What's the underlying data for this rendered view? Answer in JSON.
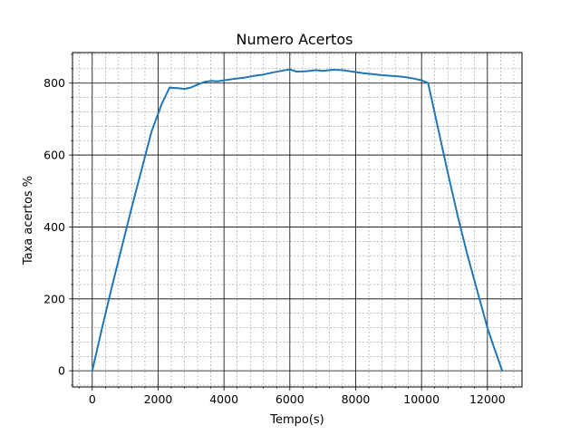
{
  "chart_data": {
    "type": "line",
    "title": "Numero Acertos",
    "xlabel": "Tempo(s)",
    "ylabel": "Taxa acertos %",
    "xlim": [
      -600,
      13050
    ],
    "ylim": [
      -45,
      885
    ],
    "xticks": [
      0,
      2000,
      4000,
      6000,
      8000,
      10000,
      12000
    ],
    "yticks": [
      0,
      200,
      400,
      600,
      800
    ],
    "grid": "major solid black, minor dashed gray",
    "line_color": "#1f77b4",
    "series": [
      {
        "x": [
          0,
          300,
          600,
          900,
          1200,
          1500,
          1800,
          2100,
          2350,
          2400,
          2600,
          2800,
          3000,
          3200,
          3400,
          3600,
          3800,
          4000,
          4300,
          4600,
          4900,
          5200,
          5500,
          5800,
          6000,
          6200,
          6500,
          6800,
          7000,
          7300,
          7600,
          7900,
          8200,
          8500,
          8800,
          9100,
          9400,
          9700,
          10000,
          10200,
          10500,
          10800,
          11100,
          11400,
          11700,
          12000,
          12200,
          12450
        ],
        "y": [
          0,
          120,
          235,
          345,
          455,
          560,
          665,
          740,
          788,
          787,
          786,
          784,
          788,
          796,
          803,
          806,
          805,
          808,
          812,
          815,
          820,
          824,
          830,
          835,
          838,
          832,
          833,
          836,
          834,
          837,
          836,
          832,
          828,
          825,
          822,
          820,
          818,
          814,
          808,
          800,
          675,
          550,
          430,
          320,
          220,
          120,
          65,
          0
        ]
      }
    ]
  }
}
